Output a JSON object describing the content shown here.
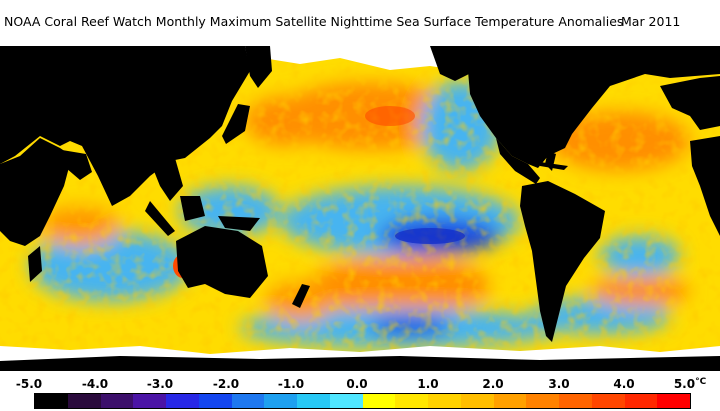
{
  "title": {
    "main": "NOAA Coral Reef Watch Monthly Maximum Satellite Nighttime Sea Surface Temperature Anomalies",
    "date": "Mar 2011"
  },
  "legend": {
    "ticks": [
      "-5.0",
      "-4.0",
      "-3.0",
      "-2.0",
      "-1.0",
      "0.0",
      "1.0",
      "2.0",
      "3.0",
      "4.0",
      "5.0"
    ],
    "unit": "°C",
    "colors": [
      "#000000",
      "#2a0a3c",
      "#3c0f6b",
      "#4b14a6",
      "#2828e6",
      "#1446f0",
      "#1e78f0",
      "#1ea0f0",
      "#28c8f5",
      "#50e6ff",
      "#ffff00",
      "#ffe600",
      "#ffd200",
      "#ffbe00",
      "#ffa000",
      "#ff8200",
      "#ff6400",
      "#ff4600",
      "#ff2800",
      "#ff0000"
    ]
  },
  "map": {
    "colors": {
      "land": "#000000",
      "ice": "#ffffff",
      "neutral": "#ffdc00",
      "warm": "#ff9a00",
      "hot": "#ff4a00",
      "cool": "#46b4f0",
      "cold": "#1e4ae0",
      "cyan": "#50e0ff"
    }
  }
}
